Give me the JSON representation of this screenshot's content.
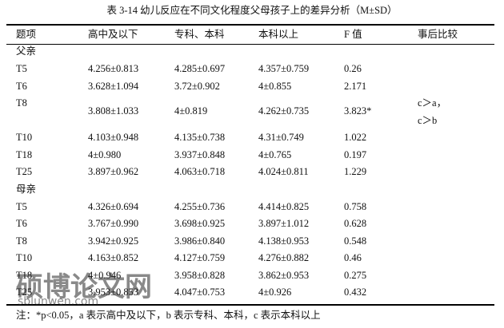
{
  "title": "表 3-14  幼儿反应在不同文化程度父母孩子上的差异分析（M±SD）",
  "header": [
    "题项",
    "高中及以下",
    "专科、本科",
    "本科以上",
    "F 值",
    "事后比较"
  ],
  "sections": [
    {
      "label": "父亲",
      "rows": [
        {
          "item": "T5",
          "values": [
            "4.256±0.813",
            "4.285±0.697",
            "4.357±0.759",
            "0.26"
          ]
        },
        {
          "item": "T6",
          "values": [
            "3.628±1.094",
            "3.72±0.902",
            "4±0.855",
            "2.171"
          ]
        },
        {
          "item": "T8",
          "values": [
            "3.808±1.033",
            "4±0.819",
            "4.262±0.735",
            "3.823*"
          ],
          "post_hoc": [
            "c＞a，",
            "c＞b"
          ]
        },
        {
          "item": "T10",
          "values": [
            "4.103±0.948",
            "4.135±0.738",
            "4.31±0.749",
            "1.022"
          ]
        },
        {
          "item": "T18",
          "values": [
            "4±0.980",
            "3.937±0.848",
            "4±0.765",
            "0.197"
          ]
        },
        {
          "item": "T25",
          "values": [
            "3.897±0.962",
            "4.063±0.718",
            "4.024±0.811",
            "1.229"
          ]
        }
      ]
    },
    {
      "label": "母亲",
      "rows": [
        {
          "item": "T5",
          "values": [
            "4.326±0.694",
            "4.255±0.736",
            "4.414±0.825",
            "0.758"
          ]
        },
        {
          "item": "T6",
          "values": [
            "3.767±0.990",
            "3.698±0.925",
            "3.897±1.012",
            "0.628"
          ]
        },
        {
          "item": "T8",
          "values": [
            "3.942±0.925",
            "3.986±0.840",
            "4.138±0.953",
            "0.548"
          ]
        },
        {
          "item": "T10",
          "values": [
            "4.163±0.852",
            "4.127±0.759",
            "4.276±0.882",
            "0.46"
          ]
        },
        {
          "item": "T18",
          "values": [
            "4±0.946",
            "3.958±0.828",
            "3.862±0.953",
            "0.275"
          ]
        },
        {
          "item": "T25",
          "values": [
            "3.953±0.853",
            "4.047±0.753",
            "4±0.926",
            "0.432"
          ]
        }
      ]
    }
  ],
  "note": "注：*p<0.05，a 表示高中及以下，b 表示专科、本科，c 表示本科以上",
  "watermark": [
    "硕博论文网",
    "sblunwen.com"
  ]
}
